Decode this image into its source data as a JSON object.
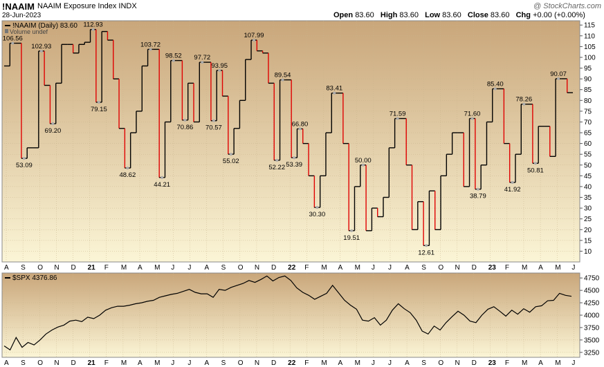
{
  "header": {
    "symbol": "!NAAIM",
    "name": "NAAIM Exposure Index",
    "exchange": "INDX",
    "date": "28-Jun-2023",
    "open_label": "Open",
    "open": "83.60",
    "high_label": "High",
    "high": "83.60",
    "low_label": "Low",
    "low": "83.60",
    "close_label": "Close",
    "close": "83.60",
    "chg_label": "Chg",
    "chg": "+0.00 (+0.00%)",
    "watermark": "@ StockCharts.com"
  },
  "colors": {
    "up": "#000000",
    "down": "#e00000",
    "bg_top": "#c9a67a",
    "bg_bottom": "#fbf5d6"
  },
  "chart_data": [
    {
      "type": "line",
      "title": "!NAAIM (Daily) 83.60",
      "subtitle": "Volume undef",
      "ylim": [
        5,
        117
      ],
      "y_ticks": [
        10,
        15,
        20,
        25,
        30,
        35,
        40,
        45,
        50,
        55,
        60,
        65,
        70,
        75,
        80,
        85,
        90,
        95,
        100,
        105,
        110,
        115
      ],
      "x_labels": [
        "A",
        "S",
        "O",
        "N",
        "D",
        "21",
        "F",
        "M",
        "A",
        "M",
        "J",
        "J",
        "A",
        "S",
        "O",
        "N",
        "D",
        "22",
        "F",
        "M",
        "A",
        "M",
        "J",
        "J",
        "A",
        "S",
        "O",
        "N",
        "D",
        "23",
        "F",
        "M",
        "A",
        "M",
        "J"
      ],
      "values": [
        96,
        106.56,
        106.56,
        53.09,
        58,
        58,
        102.93,
        87,
        69.2,
        88,
        106,
        106,
        102,
        106,
        107,
        112.93,
        79.15,
        112,
        108,
        90,
        67,
        48.62,
        65,
        75,
        96,
        103.72,
        103.72,
        44.21,
        70,
        98.52,
        98.52,
        70.86,
        88,
        70,
        97.72,
        97.72,
        70.57,
        93.95,
        82,
        55.02,
        67,
        80,
        99,
        107.99,
        103,
        102,
        88,
        52.22,
        89.54,
        89.54,
        53.39,
        66.8,
        60,
        45,
        30.3,
        45,
        65,
        83.41,
        83.41,
        60,
        19.51,
        40,
        50,
        19.51,
        30,
        26,
        35,
        58,
        71.59,
        71.59,
        50,
        20,
        33,
        12.61,
        38,
        20,
        45,
        55,
        65,
        65,
        40,
        71.6,
        38.79,
        50,
        70,
        85.4,
        85.4,
        60,
        41.92,
        55,
        78.26,
        78.26,
        50.81,
        68,
        68,
        54,
        90.07,
        90.07,
        83.6,
        83.6
      ],
      "labeled_points": [
        "106.56",
        "53.09",
        "102.93",
        "69.20",
        "112.93",
        "79.15",
        "48.62",
        "103.72",
        "44.21",
        "98.52",
        "70.86",
        "97.72",
        "93.95",
        "70.57",
        "55.02",
        "107.99",
        "52.22",
        "89.54",
        "53.39",
        "66.80",
        "30.30",
        "83.41",
        "19.51",
        "50.00",
        "71.59",
        "12.61",
        "71.60",
        "38.79",
        "85.40",
        "41.92",
        "78.26",
        "50.81",
        "90.07"
      ]
    },
    {
      "type": "line",
      "title": "$SPX 4376.86",
      "ylim": [
        3150,
        4850
      ],
      "y_ticks": [
        3250,
        3500,
        3750,
        4000,
        4250,
        4500,
        4750
      ],
      "values": [
        3380,
        3300,
        3550,
        3350,
        3450,
        3400,
        3500,
        3620,
        3700,
        3760,
        3800,
        3880,
        3900,
        3870,
        3960,
        3930,
        4000,
        4100,
        4150,
        4180,
        4180,
        4200,
        4230,
        4250,
        4280,
        4300,
        4360,
        4390,
        4420,
        4440,
        4480,
        4520,
        4460,
        4430,
        4430,
        4360,
        4520,
        4500,
        4560,
        4600,
        4640,
        4700,
        4660,
        4720,
        4790,
        4690,
        4760,
        4790,
        4700,
        4550,
        4460,
        4400,
        4320,
        4380,
        4440,
        4600,
        4450,
        4300,
        4200,
        4120,
        3900,
        3880,
        3950,
        3800,
        3900,
        4100,
        4230,
        4130,
        4050,
        3900,
        3680,
        3620,
        3780,
        3700,
        3850,
        3970,
        4080,
        4000,
        3880,
        3850,
        4000,
        4120,
        4170,
        4080,
        3980,
        4100,
        4020,
        4130,
        4060,
        4170,
        4190,
        4290,
        4300,
        4440,
        4400,
        4380
      ]
    }
  ]
}
